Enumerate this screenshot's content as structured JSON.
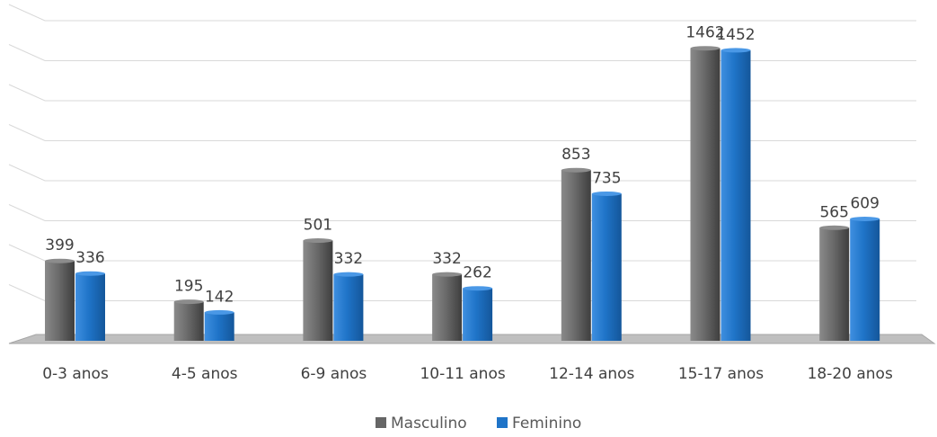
{
  "chart_data": {
    "type": "bar",
    "categories": [
      "0-3 anos",
      "4-5 anos",
      "6-9 anos",
      "10-11 anos",
      "12-14 anos",
      "15-17 anos",
      "18-20 anos"
    ],
    "series": [
      {
        "name": "Masculino",
        "values": [
          399,
          195,
          501,
          332,
          853,
          1462,
          565
        ],
        "color": "#666666"
      },
      {
        "name": "Feminino",
        "values": [
          336,
          142,
          332,
          262,
          735,
          1452,
          609
        ],
        "color": "#1f74c8"
      }
    ],
    "ylim": [
      0,
      1600
    ],
    "grid": true,
    "legend": "bottom"
  }
}
